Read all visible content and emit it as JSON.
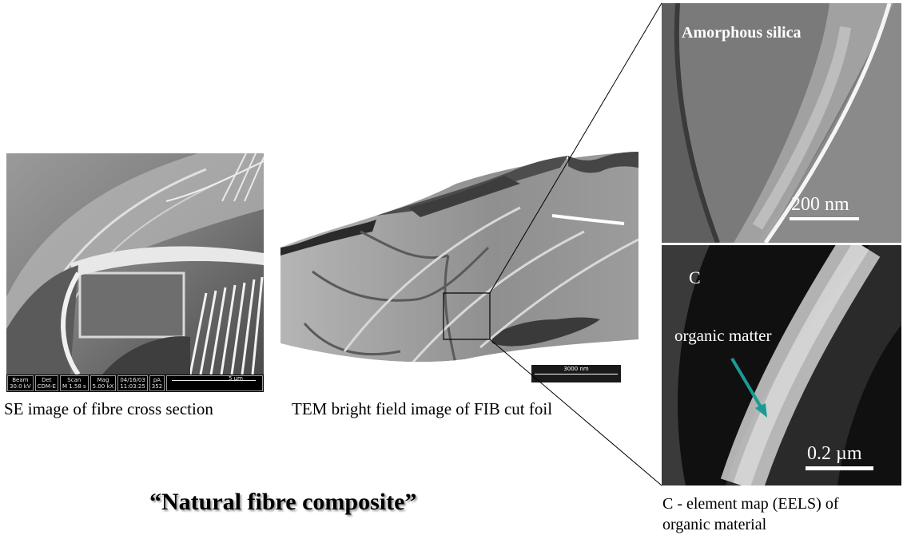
{
  "title": "“Natural fibre composite”",
  "captions": {
    "se": "SE image of fibre cross section",
    "tem": "TEM bright field image of FIB cut foil",
    "eels_line1": "C - element map (EELS) of",
    "eels_line2": "organic material"
  },
  "sem_info": {
    "beam_label": "Beam",
    "beam_value": "30.0 kV",
    "det_label": "Det",
    "det_value": "CDM-E",
    "scan_label": "Scan",
    "scan_value": "M 1.58 s",
    "mag_label": "Mag",
    "mag_value": "5.00 kX",
    "date": "04/16/03",
    "time": "11:03:25",
    "current_label": "pA",
    "current_value": "352",
    "scale": "5 µm"
  },
  "tem_scale": "3000 nm",
  "top_right": {
    "label": "Amorphous silica",
    "scale": "200 nm"
  },
  "bottom_right": {
    "label": "C",
    "annotation": "organic matter",
    "scale": "0.2 µm"
  },
  "colors": {
    "arrow": "#1a9c94",
    "shadow": "#9a9a9a"
  }
}
